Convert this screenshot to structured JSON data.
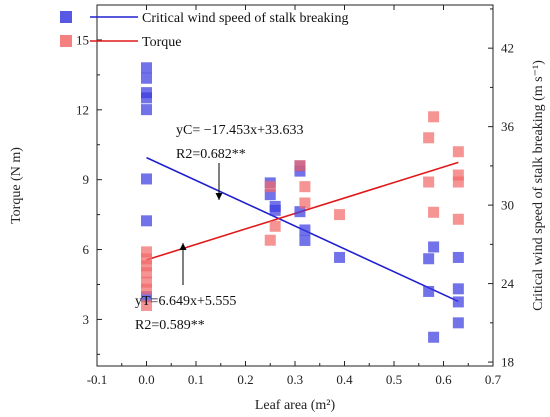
{
  "chart_data": {
    "type": "scatter",
    "xlabel": "Leaf area (m²)",
    "ylabel_left": "Torque (N m)",
    "ylabel_right": "Critical wind speed of stalk breaking (m s⁻¹)",
    "xlim": [
      -0.1,
      0.7
    ],
    "ylim_left": [
      1,
      16.5
    ],
    "ylim_right": [
      17.7,
      45.3
    ],
    "x_ticks": [
      "-0.1",
      "0.0",
      "0.1",
      "0.2",
      "0.3",
      "0.4",
      "0.5",
      "0.6",
      "0.7"
    ],
    "y_left_ticks": [
      "3",
      "6",
      "9",
      "12",
      "15"
    ],
    "y_right_ticks": [
      "18",
      "24",
      "30",
      "36",
      "42"
    ],
    "series": [
      {
        "name": "Critical wind speed of stalk breaking",
        "axis": "right",
        "color": "#3b3be0",
        "line_color": "#2020d0",
        "fit": {
          "slope": -17.453,
          "intercept": 33.633,
          "x_range": [
            0,
            0.63
          ]
        },
        "points": [
          [
            0,
            40.5
          ],
          [
            0,
            39.7
          ],
          [
            0,
            38.6
          ],
          [
            0,
            38.2
          ],
          [
            0,
            37.3
          ],
          [
            0,
            32.0
          ],
          [
            0,
            28.8
          ],
          [
            0,
            23.0
          ],
          [
            0.25,
            31.7
          ],
          [
            0.25,
            30.8
          ],
          [
            0.26,
            29.9
          ],
          [
            0.26,
            29.6
          ],
          [
            0.31,
            33.0
          ],
          [
            0.31,
            32.6
          ],
          [
            0.31,
            29.5
          ],
          [
            0.32,
            28.1
          ],
          [
            0.32,
            27.3
          ],
          [
            0.39,
            26.0
          ],
          [
            0.57,
            25.9
          ],
          [
            0.57,
            23.4
          ],
          [
            0.58,
            26.8
          ],
          [
            0.58,
            19.9
          ],
          [
            0.63,
            26.0
          ],
          [
            0.63,
            23.6
          ],
          [
            0.63,
            22.6
          ],
          [
            0.63,
            21.0
          ]
        ]
      },
      {
        "name": "Torque",
        "axis": "left",
        "color": "#f26a6a",
        "line_color": "#e01818",
        "fit": {
          "slope": 6.649,
          "intercept": 5.555,
          "x_range": [
            0,
            0.63
          ]
        },
        "points": [
          [
            0,
            5.9
          ],
          [
            0,
            5.6
          ],
          [
            0,
            5.3
          ],
          [
            0,
            5.0
          ],
          [
            0,
            4.6
          ],
          [
            0,
            4.3
          ],
          [
            0,
            3.6
          ],
          [
            0.25,
            8.7
          ],
          [
            0.25,
            6.4
          ],
          [
            0.26,
            7.0
          ],
          [
            0.31,
            9.6
          ],
          [
            0.32,
            8.7
          ],
          [
            0.32,
            8.0
          ],
          [
            0.39,
            7.5
          ],
          [
            0.57,
            10.8
          ],
          [
            0.57,
            8.9
          ],
          [
            0.58,
            11.7
          ],
          [
            0.58,
            7.6
          ],
          [
            0.63,
            10.2
          ],
          [
            0.63,
            9.2
          ],
          [
            0.63,
            8.9
          ],
          [
            0.63,
            7.3
          ]
        ]
      }
    ],
    "annotations": {
      "c_line1": "yC= −17.453x+33.633",
      "c_line2": "R2=0.682**",
      "t_line1": "yT=6.649x+5.555",
      "t_line2": "R2=0.589**"
    }
  }
}
